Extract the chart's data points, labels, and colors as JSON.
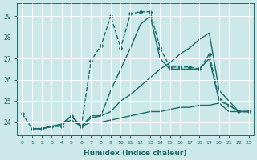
{
  "xlabel": "Humidex (Indice chaleur)",
  "xlim": [
    -0.5,
    23.5
  ],
  "ylim": [
    23.4,
    29.6
  ],
  "yticks": [
    24,
    25,
    26,
    27,
    28,
    29
  ],
  "xticks": [
    0,
    1,
    2,
    3,
    4,
    5,
    6,
    7,
    8,
    9,
    10,
    11,
    12,
    13,
    14,
    15,
    16,
    17,
    18,
    19,
    20,
    21,
    22,
    23
  ],
  "background_color": "#cce8e8",
  "grid_color": "#ffffff",
  "line_color": "#1a6b6b",
  "series": [
    {
      "x": [
        0,
        1,
        2,
        3,
        4,
        5,
        6,
        7,
        8,
        9,
        10,
        11,
        12,
        13,
        14,
        15,
        16,
        17,
        18,
        19,
        20,
        21,
        22,
        23
      ],
      "y": [
        24.4,
        23.7,
        23.7,
        23.8,
        23.8,
        24.3,
        23.8,
        26.9,
        27.6,
        29.0,
        27.5,
        29.1,
        29.2,
        29.2,
        27.5,
        26.6,
        26.6,
        26.6,
        26.5,
        27.2,
        25.1,
        24.8,
        24.5,
        24.5
      ],
      "marker": "D",
      "markersize": 2.5,
      "linewidth": 1.0,
      "linestyle": "--"
    },
    {
      "x": [
        1,
        2,
        3,
        4,
        5,
        6,
        7,
        8,
        9,
        10,
        11,
        12,
        13,
        14,
        15,
        16,
        17,
        18,
        19,
        20,
        21,
        22,
        23
      ],
      "y": [
        23.7,
        23.7,
        23.8,
        23.9,
        24.3,
        23.8,
        24.2,
        24.3,
        24.5,
        25.0,
        25.3,
        25.7,
        26.1,
        26.5,
        26.8,
        27.2,
        27.5,
        27.9,
        28.2,
        25.5,
        25.0,
        24.5,
        24.5
      ],
      "marker": null,
      "linewidth": 1.0,
      "linestyle": "-"
    },
    {
      "x": [
        1,
        2,
        3,
        4,
        5,
        6,
        7,
        8,
        9,
        10,
        11,
        12,
        13,
        14,
        15,
        16,
        17,
        18,
        19,
        20,
        21,
        22,
        23
      ],
      "y": [
        23.7,
        23.7,
        23.8,
        23.9,
        24.1,
        23.8,
        24.0,
        24.0,
        24.1,
        24.2,
        24.3,
        24.4,
        24.5,
        24.5,
        24.6,
        24.7,
        24.7,
        24.8,
        24.8,
        24.9,
        24.5,
        24.5,
        24.5
      ],
      "marker": null,
      "linewidth": 1.0,
      "linestyle": "-"
    },
    {
      "x": [
        1,
        2,
        3,
        4,
        5,
        6,
        7,
        8,
        9,
        10,
        11,
        12,
        13,
        14,
        15,
        16,
        17,
        18,
        19,
        20,
        21,
        22,
        23
      ],
      "y": [
        23.7,
        23.7,
        23.8,
        23.9,
        24.3,
        23.8,
        24.3,
        24.3,
        25.5,
        26.5,
        27.5,
        28.6,
        29.0,
        27.0,
        26.5,
        26.5,
        26.5,
        26.5,
        27.0,
        25.0,
        24.8,
        24.5,
        24.5
      ],
      "marker": null,
      "linewidth": 1.0,
      "linestyle": "-"
    }
  ]
}
